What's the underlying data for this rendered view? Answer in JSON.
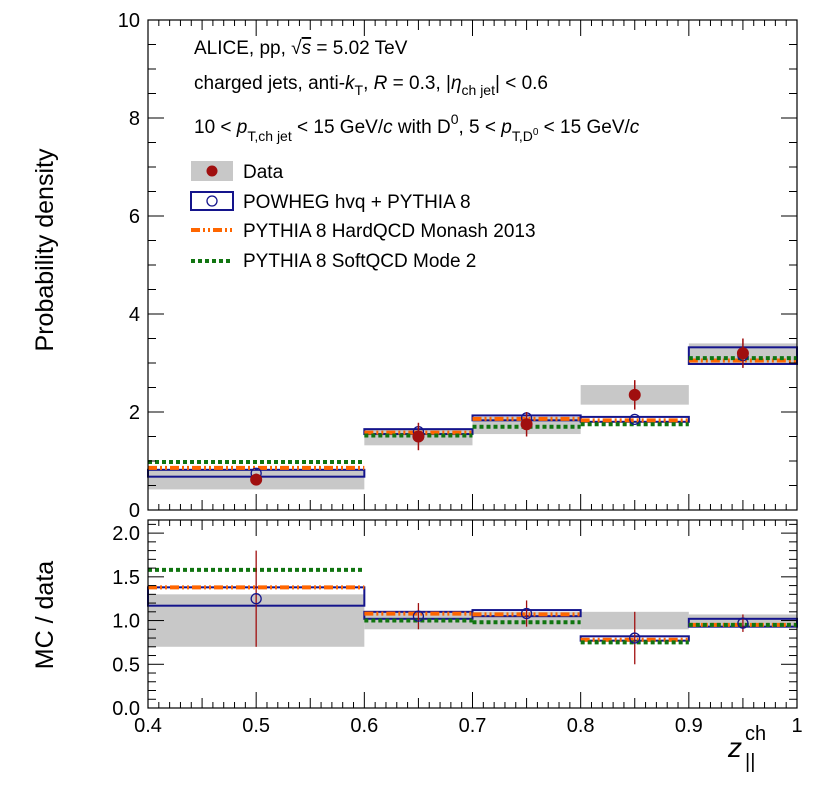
{
  "chart_data": {
    "type": "step-histogram",
    "xlabel": "z",
    "xlabel_sup": "ch",
    "xlabel_sub": "||",
    "x_edges": [
      0.4,
      0.6,
      0.7,
      0.8,
      0.9,
      1.0
    ],
    "x_centers": [
      0.5,
      0.65,
      0.75,
      0.85,
      0.95
    ],
    "x_ticks": [
      "0.4",
      "0.5",
      "0.6",
      "0.7",
      "0.8",
      "0.9",
      "1"
    ],
    "colors": {
      "data": "#a00f0f",
      "data_syst": "#c8c8c8",
      "powheg": "#14148c",
      "hardqcd": "#ff6600",
      "softqcd": "#117511"
    },
    "annotations": {
      "line1_collab": "ALICE, pp, ",
      "line1_sqrt": "√",
      "line1_s": "s",
      "line1_energy": " = 5.02 TeV",
      "line2_a": "charged jets, anti-",
      "line2_k": "k",
      "line2_ksub": "T",
      "line2_b": ", ",
      "line2_R": "R",
      "line2_c": " = 0.3, |",
      "line2_eta": "η",
      "line2_etasub": "ch jet",
      "line2_d": "| < 0.6",
      "line3_a": "10 < ",
      "line3_p": "p",
      "line3_psub": "T,ch jet",
      "line3_b": " < 15 GeV/",
      "line3_c": "c",
      "line3_d": " with D",
      "line3_dsup": "0",
      "line3_e": ", 5 < ",
      "line3_p2": "p",
      "line3_p2sub": "T,D",
      "line3_p2subsup": "0",
      "line3_f": " < 15 GeV/",
      "line3_g": "c"
    },
    "legend": [
      {
        "label": "Data"
      },
      {
        "label": "POWHEG hvq + PYTHIA 8"
      },
      {
        "label": "PYTHIA 8 HardQCD Monash 2013"
      },
      {
        "label": "PYTHIA 8 SoftQCD Mode 2"
      }
    ],
    "top_panel": {
      "ylabel": "Probability density",
      "ylim": [
        0,
        10
      ],
      "y_ticks": [
        "0",
        "2",
        "4",
        "6",
        "8",
        "10"
      ],
      "data": {
        "values": [
          0.62,
          1.5,
          1.75,
          2.35,
          3.2
        ],
        "stat_err": [
          0.12,
          0.28,
          0.25,
          0.3,
          0.3
        ],
        "syst_low": [
          0.42,
          1.32,
          1.55,
          2.15,
          3.0
        ],
        "syst_high": [
          0.82,
          1.65,
          1.9,
          2.55,
          3.4
        ]
      },
      "powheg": {
        "values": [
          0.75,
          1.6,
          1.88,
          1.85,
          3.15
        ],
        "band_low": [
          0.68,
          1.55,
          1.83,
          1.8,
          2.98
        ],
        "band_high": [
          0.82,
          1.65,
          1.93,
          1.9,
          3.32
        ]
      },
      "hardqcd": {
        "values": [
          0.86,
          1.58,
          1.86,
          1.83,
          3.05
        ]
      },
      "softqcd": {
        "values": [
          0.98,
          1.52,
          1.7,
          1.75,
          3.1
        ]
      }
    },
    "bottom_panel": {
      "ylabel": "MC / data",
      "ylim": [
        0,
        2.15
      ],
      "y_ticks": [
        "0.0",
        "0.5",
        "1.0",
        "1.5",
        "2.0"
      ],
      "data_syst_low": [
        0.7,
        0.9,
        0.9,
        0.9,
        0.93
      ],
      "data_syst_high": [
        1.3,
        1.1,
        1.1,
        1.1,
        1.07
      ],
      "powheg": {
        "values": [
          1.25,
          1.05,
          1.08,
          0.8,
          0.97
        ],
        "band_low": [
          1.17,
          1.02,
          1.05,
          0.77,
          0.93
        ],
        "band_high": [
          1.38,
          1.1,
          1.12,
          0.82,
          1.02
        ],
        "err": [
          0.55,
          0.15,
          0.15,
          0.3,
          0.1
        ]
      },
      "hardqcd": {
        "values": [
          1.38,
          1.08,
          1.07,
          0.78,
          0.95
        ]
      },
      "softqcd": {
        "values": [
          1.58,
          1.0,
          0.98,
          0.75,
          0.95
        ]
      }
    }
  }
}
